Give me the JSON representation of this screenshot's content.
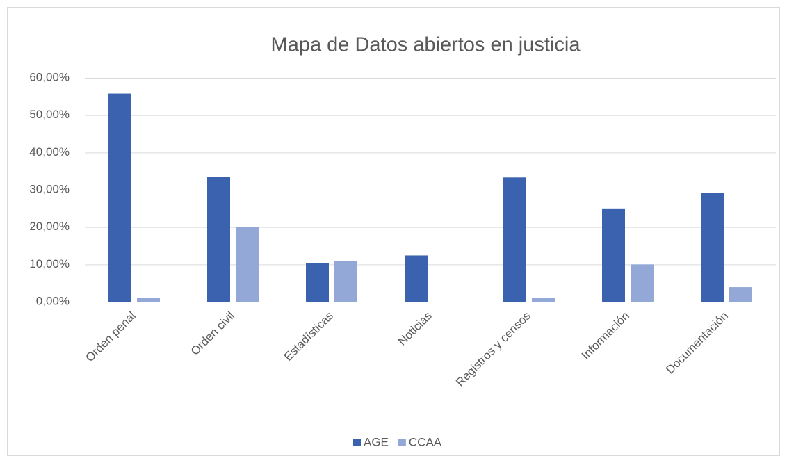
{
  "chart_data": {
    "type": "bar",
    "title": "Mapa de Datos abiertos en justicia",
    "categories": [
      "Orden penal",
      "Orden civil",
      "Estadísticas",
      "Noticias",
      "Registros y censos",
      "Información",
      "Documentación"
    ],
    "series": [
      {
        "name": "AGE",
        "color": "#3a62ae",
        "values": [
          55.8,
          33.5,
          10.4,
          12.4,
          33.3,
          25,
          29.1
        ]
      },
      {
        "name": "CCAA",
        "color": "#94a8d8",
        "values": [
          1,
          20,
          11,
          0,
          1,
          10,
          3.9
        ]
      }
    ],
    "ylim": [
      0,
      60
    ],
    "yticks": [
      {
        "value": 0,
        "label": "0,00%"
      },
      {
        "value": 10,
        "label": "10,00%"
      },
      {
        "value": 20,
        "label": "20,00%"
      },
      {
        "value": 30,
        "label": "30,00%"
      },
      {
        "value": 40,
        "label": "40,00%"
      },
      {
        "value": 50,
        "label": "50,00%"
      },
      {
        "value": 60,
        "label": "60,00%"
      }
    ],
    "grid": true,
    "legend": "bottom"
  }
}
